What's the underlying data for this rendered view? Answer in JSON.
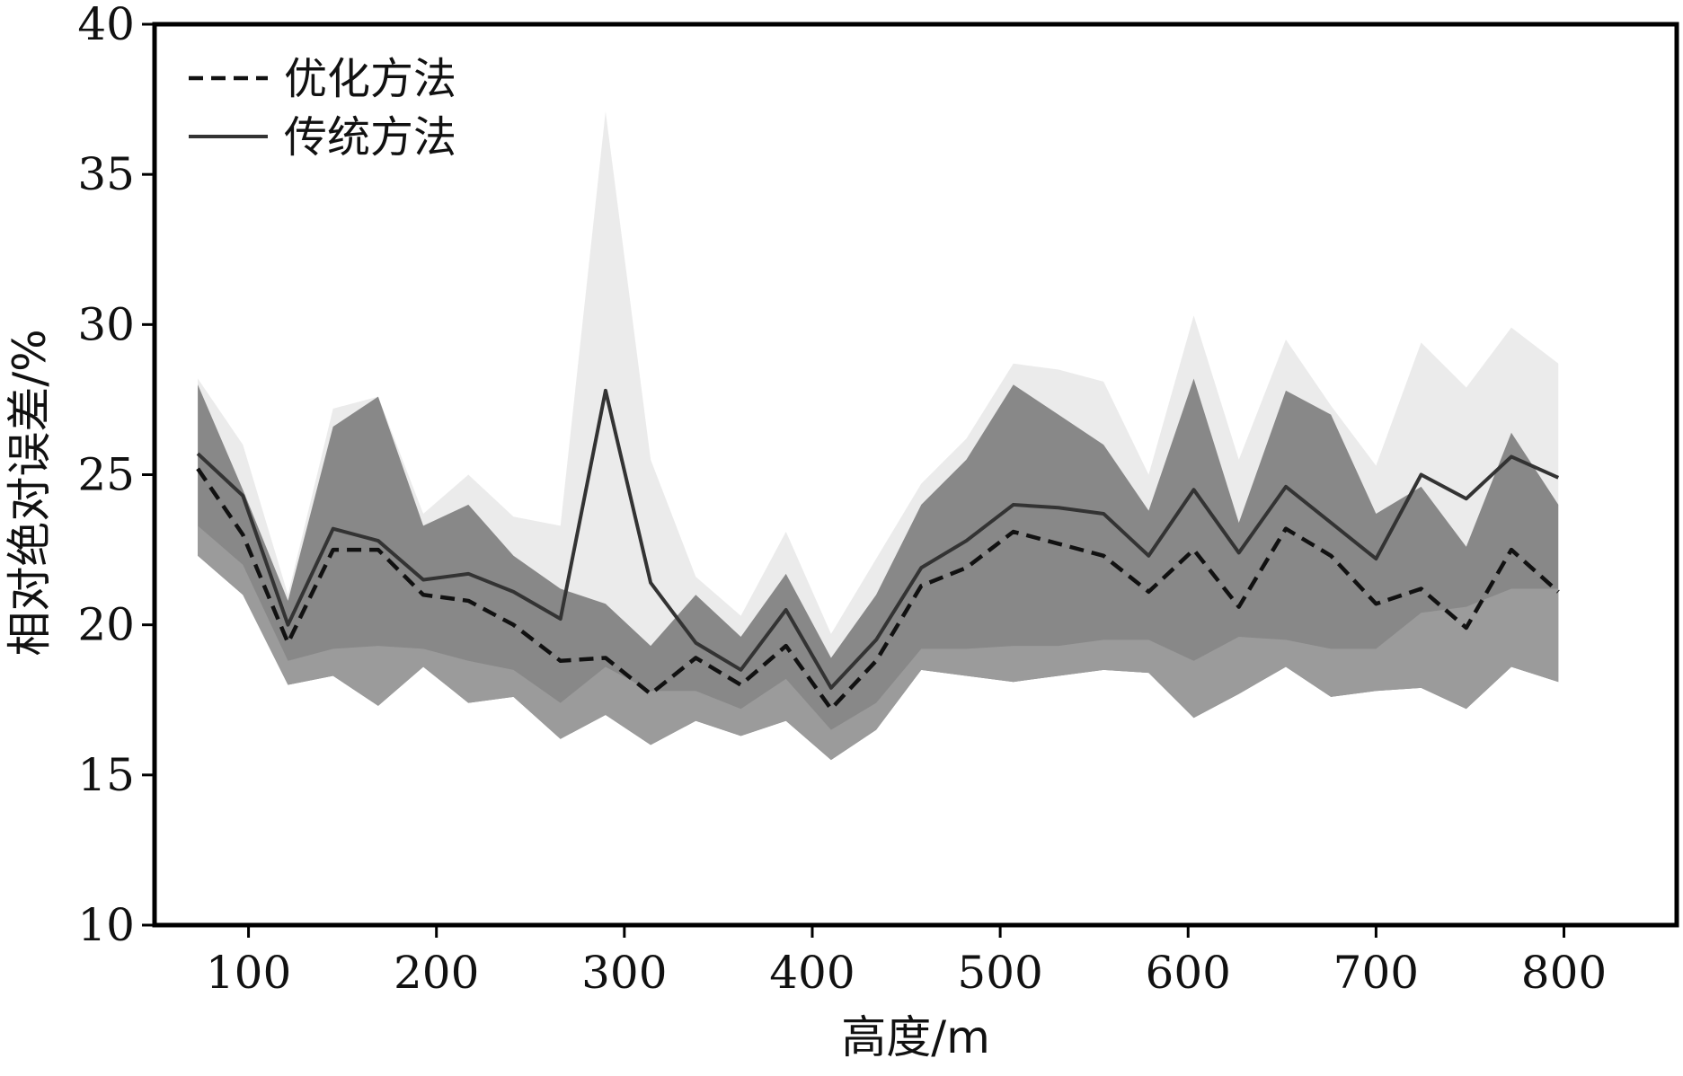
{
  "chart_data": {
    "type": "line",
    "title": "",
    "xlabel": "高度/m",
    "ylabel": "相对绝对误差/%",
    "xlim": [
      50,
      860
    ],
    "ylim": [
      10,
      40
    ],
    "xticks": [
      100,
      200,
      300,
      400,
      500,
      600,
      700,
      800
    ],
    "yticks": [
      10,
      15,
      20,
      25,
      30,
      35,
      40
    ],
    "grid": false,
    "legend_position": "top-left",
    "x": [
      73,
      97,
      121,
      145,
      169,
      193,
      217,
      241,
      266,
      290,
      314,
      338,
      362,
      386,
      410,
      434,
      458,
      482,
      507,
      531,
      555,
      579,
      603,
      627,
      652,
      676,
      700,
      724,
      748,
      772,
      797
    ],
    "series": [
      {
        "name": "优化方法",
        "style": "dashed",
        "color": "#111111",
        "values": [
          25.2,
          23.0,
          19.4,
          22.5,
          22.5,
          21.0,
          20.8,
          20.0,
          18.8,
          18.9,
          17.7,
          18.9,
          18.0,
          19.3,
          17.2,
          18.8,
          21.3,
          21.9,
          23.1,
          22.7,
          22.3,
          21.1,
          22.5,
          20.6,
          23.2,
          22.3,
          20.7,
          21.2,
          19.9,
          22.5,
          21.1
        ],
        "band_upper": [
          23.3,
          22.0,
          18.8,
          19.2,
          19.3,
          19.2,
          18.8,
          18.5,
          17.4,
          18.6,
          17.8,
          17.8,
          17.2,
          18.2,
          16.5,
          17.4,
          19.2,
          19.2,
          19.3,
          19.3,
          19.5,
          19.5,
          18.8,
          19.6,
          19.5,
          19.2,
          19.2,
          20.4,
          20.6,
          21.2,
          21.2
        ],
        "band_lower": [
          22.3,
          21.0,
          18.0,
          18.3,
          17.3,
          18.6,
          17.4,
          17.6,
          16.2,
          17.0,
          16.0,
          16.8,
          16.3,
          16.8,
          15.5,
          16.5,
          18.5,
          18.3,
          18.1,
          18.3,
          18.5,
          18.4,
          16.9,
          17.7,
          18.6,
          17.6,
          17.8,
          17.9,
          17.2,
          18.6,
          18.1
        ]
      },
      {
        "name": "传统方法",
        "style": "solid",
        "color": "#333333",
        "values": [
          25.7,
          24.3,
          20.0,
          23.2,
          22.8,
          21.5,
          21.7,
          21.1,
          20.2,
          27.8,
          21.4,
          19.4,
          18.5,
          20.5,
          17.9,
          19.5,
          21.9,
          22.8,
          24.0,
          23.9,
          23.7,
          22.3,
          24.5,
          22.4,
          24.6,
          23.4,
          22.2,
          25.0,
          24.2,
          25.6,
          24.9
        ],
        "band_upper": [
          28.0,
          24.5,
          20.8,
          26.6,
          27.6,
          23.3,
          24.0,
          22.3,
          21.2,
          20.7,
          19.3,
          21.0,
          19.6,
          21.7,
          18.9,
          21.0,
          24.0,
          25.5,
          28.0,
          27.0,
          26.0,
          23.8,
          28.2,
          23.4,
          27.8,
          27.0,
          23.7,
          24.6,
          22.6,
          26.4,
          24.0
        ],
        "band_upper_light": [
          28.2,
          26.0,
          21.0,
          27.2,
          27.6,
          23.7,
          25.0,
          23.6,
          23.3,
          37.1,
          25.5,
          21.6,
          20.3,
          23.1,
          19.7,
          22.2,
          24.7,
          26.2,
          28.7,
          28.5,
          28.1,
          25.0,
          30.3,
          25.5,
          29.5,
          27.3,
          25.3,
          29.4,
          27.9,
          29.9,
          28.7
        ]
      }
    ]
  }
}
